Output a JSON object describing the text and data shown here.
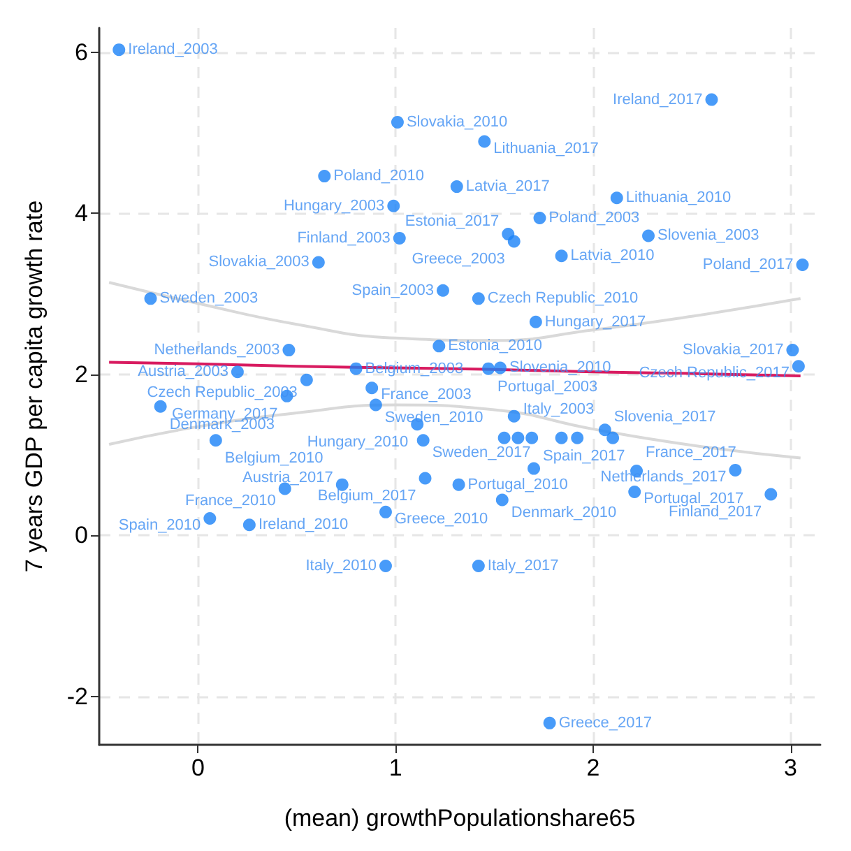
{
  "chart_data": {
    "type": "scatter",
    "color": "#1a82f7",
    "marker": "circle",
    "xlabel": "(mean) growthPopulationshare65",
    "ylabel": "7 years GDP per capita growth rate",
    "xlim": [
      -0.5,
      3.15
    ],
    "ylim": [
      -2.6,
      6.3
    ],
    "xticks": [
      0,
      1,
      2,
      3
    ],
    "yticks": [
      -2,
      0,
      2,
      4,
      6
    ],
    "grid": true,
    "series": [
      {
        "name": "Ireland_2003",
        "x": [
          -0.4
        ],
        "values": [
          6.03
        ]
      },
      {
        "name": "Slovakia_2010",
        "x": [
          1.01
        ],
        "values": [
          5.13
        ]
      },
      {
        "name": "Lithuania_2017",
        "x": [
          1.45
        ],
        "values": [
          4.89
        ]
      },
      {
        "name": "Ireland_2017",
        "x": [
          2.6
        ],
        "values": [
          5.41
        ]
      },
      {
        "name": "Poland_2010",
        "x": [
          0.64
        ],
        "values": [
          4.46
        ]
      },
      {
        "name": "Latvia_2017",
        "x": [
          1.31
        ],
        "values": [
          4.33
        ]
      },
      {
        "name": "Hungary_2003",
        "x": [
          0.99
        ],
        "values": [
          4.09
        ]
      },
      {
        "name": "Lithuania_2010",
        "x": [
          2.12
        ],
        "values": [
          4.19
        ]
      },
      {
        "name": "Poland_2003",
        "x": [
          1.73
        ],
        "values": [
          3.94
        ]
      },
      {
        "name": "Finland_2003",
        "x": [
          1.02
        ],
        "values": [
          3.69
        ]
      },
      {
        "name": "Estonia_2017",
        "x": [
          1.57
        ],
        "values": [
          3.74
        ]
      },
      {
        "name": "Greece_2003",
        "x": [
          1.6
        ],
        "values": [
          3.65
        ]
      },
      {
        "name": "Slovenia_2003",
        "x": [
          2.28
        ],
        "values": [
          3.72
        ]
      },
      {
        "name": "Latvia_2010",
        "x": [
          1.84
        ],
        "values": [
          3.47
        ]
      },
      {
        "name": "Slovakia_2003",
        "x": [
          0.61
        ],
        "values": [
          3.39
        ]
      },
      {
        "name": "Poland_2017",
        "x": [
          3.06
        ],
        "values": [
          3.36
        ]
      },
      {
        "name": "Sweden_2003",
        "x": [
          -0.24
        ],
        "values": [
          2.94
        ]
      },
      {
        "name": "Spain_2003",
        "x": [
          1.24
        ],
        "values": [
          3.04
        ]
      },
      {
        "name": "Czech Republic_2010",
        "x": [
          1.42
        ],
        "values": [
          2.94
        ]
      },
      {
        "name": "Hungary_2017",
        "x": [
          1.71
        ],
        "values": [
          2.65
        ]
      },
      {
        "name": "Netherlands_2003",
        "x": [
          0.46
        ],
        "values": [
          2.3
        ]
      },
      {
        "name": "Estonia_2010",
        "x": [
          1.22
        ],
        "values": [
          2.35
        ]
      },
      {
        "name": "Austria_2003",
        "x": [
          0.2
        ],
        "values": [
          2.03
        ]
      },
      {
        "name": "Belgium_2003",
        "x": [
          0.8
        ],
        "values": [
          2.07
        ]
      },
      {
        "name": "Czech Republic_2003",
        "x": [
          0.55
        ],
        "values": [
          1.93
        ]
      },
      {
        "name": "France_2003",
        "x": [
          0.88
        ],
        "values": [
          1.83
        ]
      },
      {
        "name": "Germany_2017",
        "x": [
          0.45
        ],
        "values": [
          1.73
        ]
      },
      {
        "name": "Sweden_2010",
        "x": [
          0.9
        ],
        "values": [
          1.62
        ]
      },
      {
        "name": "Denmark_2003",
        "x": [
          -0.19
        ],
        "values": [
          1.6
        ]
      },
      {
        "name": "Hungary_2010",
        "x": [
          1.11
        ],
        "values": [
          1.38
        ]
      },
      {
        "name": "Belgium_2010",
        "x": [
          0.09
        ],
        "values": [
          1.18
        ]
      },
      {
        "name": "Sweden_2017",
        "x": [
          1.14
        ],
        "values": [
          1.18
        ]
      },
      {
        "name": "Portugal_2003",
        "x": [
          1.47
        ],
        "values": [
          2.07
        ]
      },
      {
        "name": "Slovenia_2010",
        "x": [
          1.53
        ],
        "values": [
          2.08
        ]
      },
      {
        "name": "Italy_2003",
        "x": [
          1.6
        ],
        "values": [
          1.48
        ]
      },
      {
        "x": [
          1.55,
          1.62,
          1.69,
          1.84,
          1.92,
          2.1
        ],
        "values": [
          1.21,
          1.21,
          1.21,
          1.21,
          1.21,
          1.21
        ]
      },
      {
        "name": "Slovenia_2017",
        "x": [
          2.06
        ],
        "values": [
          1.31
        ]
      },
      {
        "name": "Spain_2017",
        "x": [
          1.7
        ],
        "values": [
          0.83
        ]
      },
      {
        "name": "France_2017",
        "x": [
          2.22
        ],
        "values": [
          0.8
        ]
      },
      {
        "name": "Netherlands_2017",
        "x": [
          2.72
        ],
        "values": [
          0.81
        ]
      },
      {
        "name": "Portugal_2017",
        "x": [
          2.21
        ],
        "values": [
          0.54
        ]
      },
      {
        "name": "Finland_2017",
        "x": [
          2.9
        ],
        "values": [
          0.51
        ]
      },
      {
        "name": "Denmark_2010",
        "x": [
          1.54
        ],
        "values": [
          0.44
        ]
      },
      {
        "name": "Portugal_2010",
        "x": [
          1.32
        ],
        "values": [
          0.63
        ]
      },
      {
        "name": "Belgium_2017",
        "x": [
          1.15
        ],
        "values": [
          0.71
        ]
      },
      {
        "name": "Austria_2017",
        "x": [
          0.73
        ],
        "values": [
          0.63
        ]
      },
      {
        "name": "France_2010",
        "x": [
          0.44
        ],
        "values": [
          0.58
        ]
      },
      {
        "name": "Greece_2010",
        "x": [
          0.95
        ],
        "values": [
          0.29
        ]
      },
      {
        "name": "Spain_2010",
        "x": [
          0.06
        ],
        "values": [
          0.21
        ]
      },
      {
        "name": "Ireland_2010",
        "x": [
          0.26
        ],
        "values": [
          0.13
        ]
      },
      {
        "name": "Italy_2010",
        "x": [
          0.95
        ],
        "values": [
          -0.38
        ]
      },
      {
        "name": "Italy_2017",
        "x": [
          1.42
        ],
        "values": [
          -0.38
        ]
      },
      {
        "name": "Greece_2017",
        "x": [
          1.78
        ],
        "values": [
          -2.33
        ]
      },
      {
        "name": "Slovakia_2017",
        "x": [
          3.01
        ],
        "values": [
          2.3
        ]
      },
      {
        "name": "Czech Republic_2017",
        "x": [
          3.04
        ],
        "values": [
          2.1
        ]
      },
      {
        "type": "line",
        "color": "#d9d9d9",
        "marker": "none",
        "line_style": "solid",
        "x": [
          -0.45,
          0,
          0.5,
          1,
          1.5,
          2,
          2.5,
          3.05
        ],
        "values": [
          1.13,
          1.35,
          1.52,
          1.62,
          1.56,
          1.32,
          1.12,
          0.96
        ]
      },
      {
        "type": "line",
        "color": "#d9d9d9",
        "marker": "none",
        "line_style": "solid",
        "x": [
          -0.45,
          0,
          0.5,
          1,
          1.5,
          2,
          2.5,
          3.05
        ],
        "values": [
          3.14,
          2.88,
          2.62,
          2.45,
          2.42,
          2.55,
          2.72,
          2.94
        ]
      },
      {
        "type": "line",
        "color": "#d81b60",
        "marker": "none",
        "line_style": "solid",
        "x": [
          -0.45,
          0,
          0.5,
          1,
          1.5,
          2,
          2.5,
          3.05
        ],
        "values": [
          2.15,
          2.13,
          2.1,
          2.08,
          2.06,
          2.03,
          2.01,
          1.98
        ]
      }
    ]
  }
}
